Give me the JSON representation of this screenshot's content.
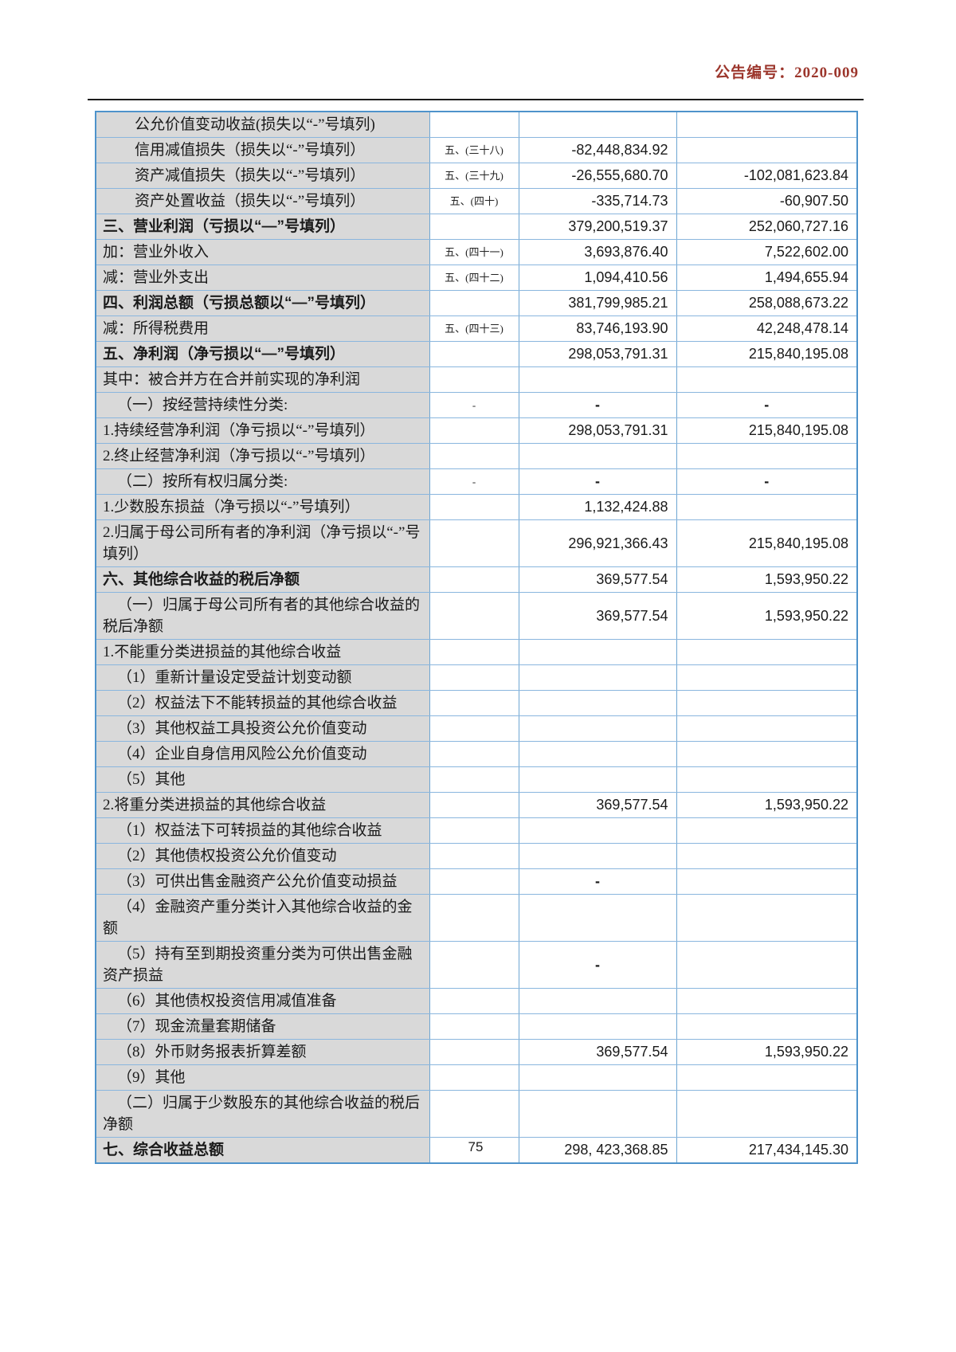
{
  "header": {
    "announcement_number": "公告编号：2020-009"
  },
  "footer": {
    "page_number": "75"
  },
  "colors": {
    "header_text": "#9c362c",
    "table_border_outer": "#4e93cb",
    "table_border_inner": "#8ab6de",
    "label_column_bg": "#d9d9d9"
  },
  "table": {
    "rows": [
      {
        "label": "公允价值变动收益(损失以“-”号填列)",
        "note": "",
        "current": "",
        "prior": "",
        "bold": false,
        "indent": 2
      },
      {
        "label": "信用减值损失（损失以“-”号填列）",
        "note": "五、(三十八)",
        "current": "-82,448,834.92",
        "prior": "",
        "bold": false,
        "indent": 2
      },
      {
        "label": "资产减值损失（损失以“-”号填列）",
        "note": "五、(三十九)",
        "current": "-26,555,680.70",
        "prior": "-102,081,623.84",
        "bold": false,
        "indent": 2
      },
      {
        "label": "资产处置收益（损失以“-”号填列）",
        "note": "五、(四十)",
        "current": "-335,714.73",
        "prior": "-60,907.50",
        "bold": false,
        "indent": 2
      },
      {
        "label": "三、营业利润（亏损以“—”号填列）",
        "note": "",
        "current": "379,200,519.37",
        "prior": "252,060,727.16",
        "bold": true,
        "indent": 0
      },
      {
        "label": "加：营业外收入",
        "note": "五、(四十一)",
        "current": "3,693,876.40",
        "prior": "7,522,602.00",
        "bold": false,
        "indent": 0
      },
      {
        "label": "减：营业外支出",
        "note": "五、(四十二)",
        "current": "1,094,410.56",
        "prior": "1,494,655.94",
        "bold": false,
        "indent": 0
      },
      {
        "label": "四、利润总额（亏损总额以“—”号填列）",
        "note": "",
        "current": "381,799,985.21",
        "prior": "258,088,673.22",
        "bold": true,
        "indent": 0
      },
      {
        "label": "减：所得税费用",
        "note": "五、(四十三)",
        "current": "83,746,193.90",
        "prior": "42,248,478.14",
        "bold": false,
        "indent": 0
      },
      {
        "label": "五、净利润（净亏损以“—”号填列）",
        "note": "",
        "current": "298,053,791.31",
        "prior": "215,840,195.08",
        "bold": true,
        "indent": 0
      },
      {
        "label": "其中：被合并方在合并前实现的净利润",
        "note": "",
        "current": "",
        "prior": "",
        "bold": false,
        "indent": 0
      },
      {
        "label": "（一）按经营持续性分类:",
        "note": "-",
        "current": "-",
        "prior": "-",
        "bold": false,
        "indent": 1
      },
      {
        "label": "1.持续经营净利润（净亏损以“-”号填列）",
        "note": "",
        "current": "298,053,791.31",
        "prior": "215,840,195.08",
        "bold": false,
        "indent": 0
      },
      {
        "label": "2.终止经营净利润（净亏损以“-”号填列）",
        "note": "",
        "current": "",
        "prior": "",
        "bold": false,
        "indent": 0
      },
      {
        "label": "（二）按所有权归属分类:",
        "note": "-",
        "current": "-",
        "prior": "-",
        "bold": false,
        "indent": 1
      },
      {
        "label": "1.少数股东损益（净亏损以“-”号填列）",
        "note": "",
        "current": "1,132,424.88",
        "prior": "",
        "bold": false,
        "indent": 0
      },
      {
        "label": "2.归属于母公司所有者的净利润（净亏损以“-”号填列）",
        "note": "",
        "current": "296,921,366.43",
        "prior": "215,840,195.08",
        "bold": false,
        "indent": 0
      },
      {
        "label": "六、其他综合收益的税后净额",
        "note": "",
        "current": "369,577.54",
        "prior": "1,593,950.22",
        "bold": true,
        "indent": 0
      },
      {
        "label": "（一）归属于母公司所有者的其他综合收益的税后净额",
        "note": "",
        "current": "369,577.54",
        "prior": "1,593,950.22",
        "bold": false,
        "indent": 1
      },
      {
        "label": "1.不能重分类进损益的其他综合收益",
        "note": "",
        "current": "",
        "prior": "",
        "bold": false,
        "indent": 0
      },
      {
        "label": "（1）重新计量设定受益计划变动额",
        "note": "",
        "current": "",
        "prior": "",
        "bold": false,
        "indent": 1
      },
      {
        "label": "（2）权益法下不能转损益的其他综合收益",
        "note": "",
        "current": "",
        "prior": "",
        "bold": false,
        "indent": 1
      },
      {
        "label": "（3）其他权益工具投资公允价值变动",
        "note": "",
        "current": "",
        "prior": "",
        "bold": false,
        "indent": 1
      },
      {
        "label": "（4）企业自身信用风险公允价值变动",
        "note": "",
        "current": "",
        "prior": "",
        "bold": false,
        "indent": 1
      },
      {
        "label": "（5）其他",
        "note": "",
        "current": "",
        "prior": "",
        "bold": false,
        "indent": 1
      },
      {
        "label": "2.将重分类进损益的其他综合收益",
        "note": "",
        "current": "369,577.54",
        "prior": "1,593,950.22",
        "bold": false,
        "indent": 0
      },
      {
        "label": "（1）权益法下可转损益的其他综合收益",
        "note": "",
        "current": "",
        "prior": "",
        "bold": false,
        "indent": 1
      },
      {
        "label": "（2）其他债权投资公允价值变动",
        "note": "",
        "current": "",
        "prior": "",
        "bold": false,
        "indent": 1
      },
      {
        "label": "（3）可供出售金融资产公允价值变动损益",
        "note": "",
        "current": "-",
        "prior": "",
        "bold": false,
        "indent": 1
      },
      {
        "label": "（4）金融资产重分类计入其他综合收益的金额",
        "note": "",
        "current": "",
        "prior": "",
        "bold": false,
        "indent": 1
      },
      {
        "label": "（5）持有至到期投资重分类为可供出售金融资产损益",
        "note": "",
        "current": "-",
        "prior": "",
        "bold": false,
        "indent": 1
      },
      {
        "label": "（6）其他债权投资信用减值准备",
        "note": "",
        "current": "",
        "prior": "",
        "bold": false,
        "indent": 1
      },
      {
        "label": "（7）现金流量套期储备",
        "note": "",
        "current": "",
        "prior": "",
        "bold": false,
        "indent": 1
      },
      {
        "label": "（8）外币财务报表折算差额",
        "note": "",
        "current": "369,577.54",
        "prior": "1,593,950.22",
        "bold": false,
        "indent": 1
      },
      {
        "label": "（9）其他",
        "note": "",
        "current": "",
        "prior": "",
        "bold": false,
        "indent": 1
      },
      {
        "label": "（二）归属于少数股东的其他综合收益的税后净额",
        "note": "",
        "current": "",
        "prior": "",
        "bold": false,
        "indent": 1
      },
      {
        "label": "七、综合收益总额",
        "note": "",
        "current": "298, 423,368.85",
        "prior": "217,434,145.30",
        "bold": true,
        "indent": 0
      }
    ]
  }
}
